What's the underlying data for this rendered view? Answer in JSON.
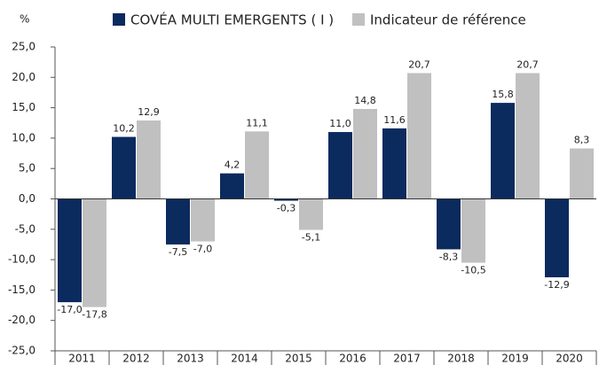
{
  "chart_data": {
    "type": "bar",
    "y_label": "%",
    "categories": [
      "2011",
      "2012",
      "2013",
      "2014",
      "2015",
      "2016",
      "2017",
      "2018",
      "2019",
      "2020"
    ],
    "series": [
      {
        "name": "COVÉA MULTI EMERGENTS ( I )",
        "color": "#0b2a5e",
        "values": [
          -17.0,
          10.2,
          -7.5,
          4.2,
          -0.3,
          11.0,
          11.6,
          -8.3,
          15.8,
          -12.9
        ],
        "value_labels": [
          "-17,0",
          "10,2",
          "-7,5",
          "4,2",
          "-0,3",
          "11,0",
          "11,6",
          "-8,3",
          "15,8",
          "-12,9"
        ]
      },
      {
        "name": "Indicateur de référence",
        "color": "#c0c0c0",
        "values": [
          -17.8,
          12.9,
          -7.0,
          11.1,
          -5.1,
          14.8,
          20.7,
          -10.5,
          20.7,
          8.3
        ],
        "value_labels": [
          "-17,8",
          "12,9",
          "-7,0",
          "11,1",
          "-5,1",
          "14,8",
          "20,7",
          "-10,5",
          "20,7",
          "8,3"
        ]
      }
    ],
    "ylim": [
      -25,
      25
    ],
    "yticks": [
      {
        "value": 25,
        "label": "25,0"
      },
      {
        "value": 20,
        "label": "20,0"
      },
      {
        "value": 15,
        "label": "15,0"
      },
      {
        "value": 10,
        "label": "10,0"
      },
      {
        "value": 5,
        "label": "5,0"
      },
      {
        "value": 0,
        "label": "0,0"
      },
      {
        "value": -5,
        "label": "-5,0"
      },
      {
        "value": -10,
        "label": "-10,0"
      },
      {
        "value": -15,
        "label": "-15,0"
      },
      {
        "value": -20,
        "label": "-20,0"
      },
      {
        "value": -25,
        "label": "-25,0"
      }
    ],
    "grid": false
  }
}
